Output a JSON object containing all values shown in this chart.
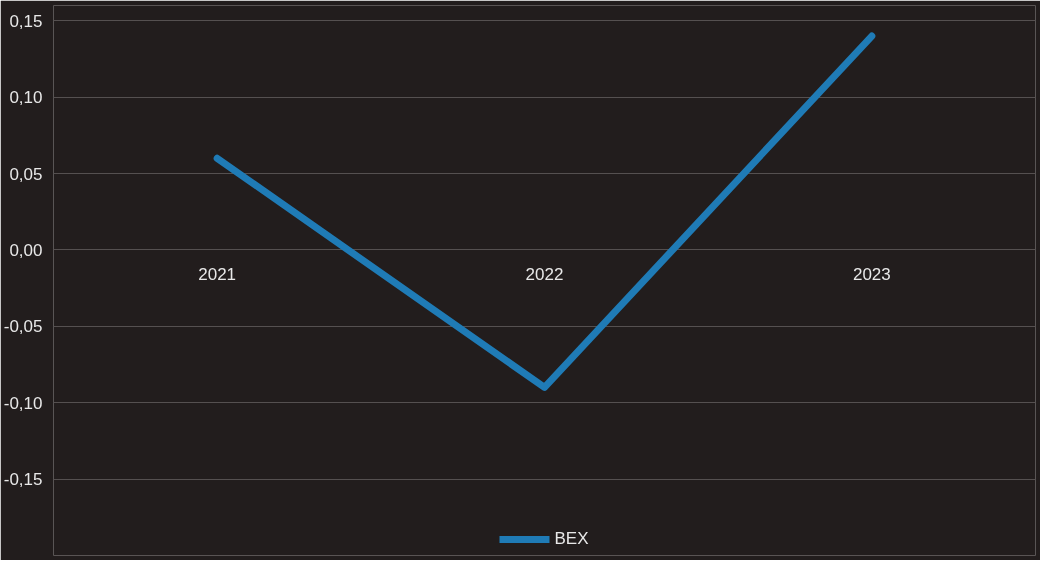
{
  "chart_data": {
    "type": "line",
    "categories": [
      "2021",
      "2022",
      "2023"
    ],
    "series": [
      {
        "name": "BEX",
        "color": "#1f7bb6",
        "values": [
          0.06,
          -0.09,
          0.14
        ]
      }
    ],
    "ylim": [
      -0.2,
      0.16
    ],
    "yticks": [
      {
        "value": -0.15,
        "label": "-0,15"
      },
      {
        "value": -0.1,
        "label": "-0,10"
      },
      {
        "value": -0.05,
        "label": "-0,05"
      },
      {
        "value": 0,
        "label": "0,00"
      },
      {
        "value": 0.05,
        "label": "0,05"
      },
      {
        "value": 0.1,
        "label": "0,10"
      },
      {
        "value": 0.15,
        "label": "0,15"
      }
    ],
    "grid": "y",
    "legend": "bottom"
  }
}
